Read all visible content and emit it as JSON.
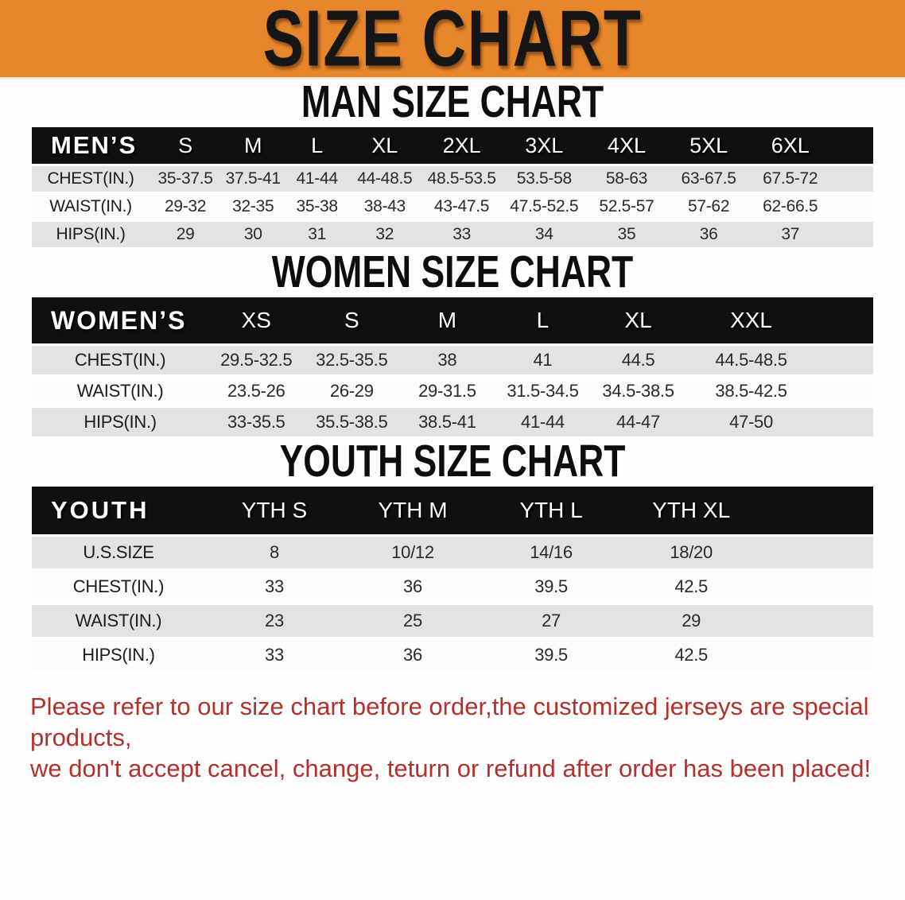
{
  "banner": {
    "title": "SIZE CHART"
  },
  "colors": {
    "banner_bg": "#E8862B",
    "banner_text": "#161616",
    "header_bar": "#101010",
    "header_text": "#FFFFFF",
    "row_alt": "#E3E3E3",
    "row_base": "#FCFCFC",
    "disclaimer_text": "#B3302B"
  },
  "sections": [
    {
      "heading": "MAN SIZE CHART",
      "table": {
        "header_label": "MEN’S",
        "columns": [
          "S",
          "M",
          "L",
          "XL",
          "2XL",
          "3XL",
          "4XL",
          "5XL",
          "6XL"
        ],
        "rows": [
          {
            "label": "CHEST(IN.)",
            "values": [
              "35-37.5",
              "37.5-41",
              "41-44",
              "44-48.5",
              "48.5-53.5",
              "53.5-58",
              "58-63",
              "63-67.5",
              "67.5-72"
            ]
          },
          {
            "label": "WAIST(IN.)",
            "values": [
              "29-32",
              "32-35",
              "35-38",
              "38-43",
              "43-47.5",
              "47.5-52.5",
              "52.5-57",
              "57-62",
              "62-66.5"
            ]
          },
          {
            "label": "HIPS(IN.)",
            "values": [
              "29",
              "30",
              "31",
              "32",
              "33",
              "34",
              "35",
              "36",
              "37"
            ]
          }
        ]
      }
    },
    {
      "heading": "WOMEN SIZE CHART",
      "table": {
        "header_label": "WOMEN’S",
        "columns": [
          "XS",
          "S",
          "M",
          "L",
          "XL",
          "XXL"
        ],
        "rows": [
          {
            "label": "CHEST(IN.)",
            "values": [
              "29.5-32.5",
              "32.5-35.5",
              "38",
              "41",
              "44.5",
              "44.5-48.5"
            ]
          },
          {
            "label": "WAIST(IN.)",
            "values": [
              "23.5-26",
              "26-29",
              "29-31.5",
              "31.5-34.5",
              "34.5-38.5",
              "38.5-42.5"
            ]
          },
          {
            "label": "HIPS(IN.)",
            "values": [
              "33-35.5",
              "35.5-38.5",
              "38.5-41",
              "41-44",
              "44-47",
              "47-50"
            ]
          }
        ]
      }
    },
    {
      "heading": "YOUTH SIZE CHART",
      "table": {
        "header_label": "YOUTH",
        "columns": [
          "YTH S",
          "YTH M",
          "YTH L",
          "YTH XL"
        ],
        "rows": [
          {
            "label": "U.S.SIZE",
            "values": [
              "8",
              "10/12",
              "14/16",
              "18/20"
            ]
          },
          {
            "label": "CHEST(IN.)",
            "values": [
              "33",
              "36",
              "39.5",
              "42.5"
            ]
          },
          {
            "label": "WAIST(IN.)",
            "values": [
              "23",
              "25",
              "27",
              "29"
            ]
          },
          {
            "label": "HIPS(IN.)",
            "values": [
              "33",
              "36",
              "39.5",
              "42.5"
            ]
          }
        ]
      }
    }
  ],
  "footer": {
    "line1": "Please refer to our size chart before order,the customized jerseys are special products,",
    "line2": "we don't accept cancel, change, teturn or refund after order has been placed!"
  }
}
